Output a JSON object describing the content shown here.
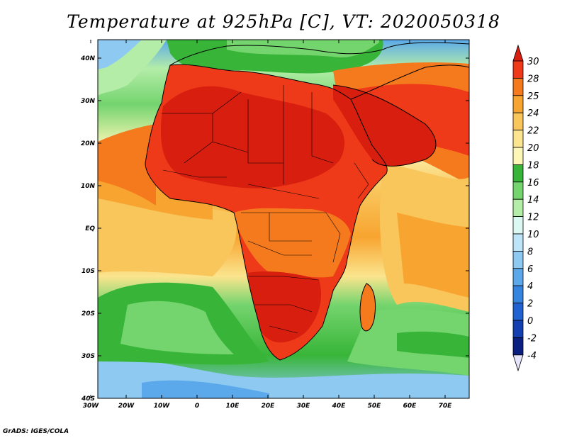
{
  "title": "Temperature at 925hPa [C], VT: 2020050318",
  "credit": "GrADS: IGES/COLA",
  "lon_ticks": [
    "30W",
    "20W",
    "10W",
    "0",
    "10E",
    "20E",
    "30E",
    "40E",
    "50E",
    "60E",
    "70E"
  ],
  "lat_ticks": [
    "40N",
    "30N",
    "20N",
    "10N",
    "EQ",
    "10S",
    "20S",
    "30S",
    "40S"
  ],
  "colorbar": {
    "labels": [
      "30",
      "28",
      "25",
      "24",
      "22",
      "20",
      "18",
      "16",
      "14",
      "12",
      "10",
      "8",
      "6",
      "4",
      "2",
      "0",
      "-2",
      "-4"
    ],
    "colors": [
      "#d71e0f",
      "#ee3a18",
      "#f57a1e",
      "#f8a430",
      "#f9c65c",
      "#fbe58e",
      "#fdf7b7",
      "#38b538",
      "#74d46e",
      "#b4eda8",
      "#dcf8f2",
      "#bde4f8",
      "#8ec9f2",
      "#5ba9ea",
      "#3585e0",
      "#1f62d0",
      "#143fb1",
      "#0b1f80",
      "#e6e4fb"
    ]
  },
  "regions": {
    "ocean_cool": "#5ba9ea",
    "ocean_cold": "#8ec9f2",
    "ocean_mild": "#74d46e",
    "ocean_warm": "#fdf7b7",
    "ocean_trop": "#f9c65c",
    "land_hot": "#d71e0f",
    "land_warm": "#ee3a18",
    "land_mid": "#f57a1e",
    "med": "#38b538"
  }
}
